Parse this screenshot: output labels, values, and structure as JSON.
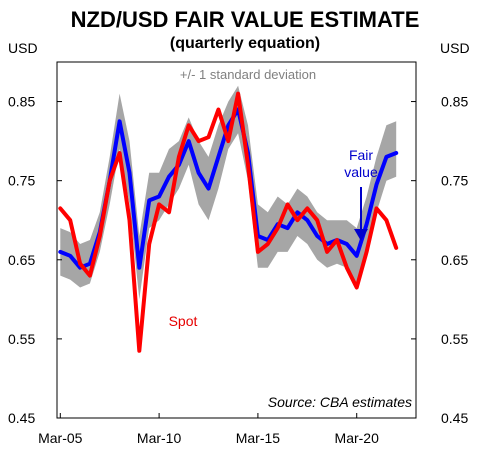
{
  "chart_data": {
    "type": "line",
    "title": "NZD/USD FAIR VALUE ESTIMATE",
    "subtitle": "(quarterly equation)",
    "ylabel_left": "USD",
    "ylabel_right": "USD",
    "ylim": [
      0.45,
      0.9
    ],
    "yticks": [
      0.45,
      0.55,
      0.65,
      0.75,
      0.85
    ],
    "ytick_labels": [
      "0.45",
      "0.55",
      "0.65",
      "0.75",
      "0.85"
    ],
    "xlim": [
      "2005-01",
      "2023-03"
    ],
    "xticks": [
      "2005-03",
      "2010-03",
      "2015-03",
      "2020-03"
    ],
    "xtick_labels": [
      "Mar-05",
      "Mar-10",
      "Mar-15",
      "Mar-20"
    ],
    "grid": false,
    "band": {
      "label": "+/- 1 standard deviation",
      "color": "#a6a6a6",
      "upper": [
        [
          "2005-03",
          0.69
        ],
        [
          "2005-09",
          0.685
        ],
        [
          "2006-03",
          0.67
        ],
        [
          "2006-09",
          0.675
        ],
        [
          "2007-03",
          0.71
        ],
        [
          "2007-09",
          0.78
        ],
        [
          "2008-03",
          0.86
        ],
        [
          "2008-09",
          0.8
        ],
        [
          "2009-03",
          0.68
        ],
        [
          "2009-09",
          0.76
        ],
        [
          "2010-03",
          0.76
        ],
        [
          "2010-09",
          0.79
        ],
        [
          "2011-03",
          0.8
        ],
        [
          "2011-09",
          0.83
        ],
        [
          "2012-03",
          0.8
        ],
        [
          "2012-09",
          0.78
        ],
        [
          "2013-03",
          0.82
        ],
        [
          "2013-09",
          0.85
        ],
        [
          "2014-03",
          0.87
        ],
        [
          "2014-09",
          0.82
        ],
        [
          "2015-03",
          0.72
        ],
        [
          "2015-09",
          0.71
        ],
        [
          "2016-03",
          0.73
        ],
        [
          "2016-09",
          0.72
        ],
        [
          "2017-03",
          0.74
        ],
        [
          "2017-09",
          0.73
        ],
        [
          "2018-03",
          0.71
        ],
        [
          "2018-09",
          0.7
        ],
        [
          "2019-03",
          0.7
        ],
        [
          "2019-09",
          0.7
        ],
        [
          "2020-03",
          0.69
        ],
        [
          "2020-09",
          0.73
        ],
        [
          "2021-03",
          0.78
        ],
        [
          "2021-09",
          0.82
        ],
        [
          "2022-03",
          0.825
        ]
      ],
      "lower": [
        [
          "2005-03",
          0.63
        ],
        [
          "2005-09",
          0.625
        ],
        [
          "2006-03",
          0.615
        ],
        [
          "2006-09",
          0.62
        ],
        [
          "2007-03",
          0.66
        ],
        [
          "2007-09",
          0.72
        ],
        [
          "2008-03",
          0.79
        ],
        [
          "2008-09",
          0.72
        ],
        [
          "2009-03",
          0.6
        ],
        [
          "2009-09",
          0.69
        ],
        [
          "2010-03",
          0.7
        ],
        [
          "2010-09",
          0.72
        ],
        [
          "2011-03",
          0.74
        ],
        [
          "2011-09",
          0.77
        ],
        [
          "2012-03",
          0.72
        ],
        [
          "2012-09",
          0.7
        ],
        [
          "2013-03",
          0.74
        ],
        [
          "2013-09",
          0.79
        ],
        [
          "2014-03",
          0.81
        ],
        [
          "2014-09",
          0.75
        ],
        [
          "2015-03",
          0.64
        ],
        [
          "2015-09",
          0.64
        ],
        [
          "2016-03",
          0.66
        ],
        [
          "2016-09",
          0.66
        ],
        [
          "2017-03",
          0.68
        ],
        [
          "2017-09",
          0.67
        ],
        [
          "2018-03",
          0.65
        ],
        [
          "2018-09",
          0.64
        ],
        [
          "2019-03",
          0.645
        ],
        [
          "2019-09",
          0.64
        ],
        [
          "2020-03",
          0.62
        ],
        [
          "2020-09",
          0.66
        ],
        [
          "2021-03",
          0.71
        ],
        [
          "2021-09",
          0.75
        ],
        [
          "2022-03",
          0.755
        ]
      ]
    },
    "series": [
      {
        "name": "Fair value",
        "color": "#0000ff",
        "points": [
          [
            "2005-03",
            0.66
          ],
          [
            "2005-09",
            0.655
          ],
          [
            "2006-03",
            0.64
          ],
          [
            "2006-09",
            0.645
          ],
          [
            "2007-03",
            0.685
          ],
          [
            "2007-09",
            0.75
          ],
          [
            "2008-03",
            0.825
          ],
          [
            "2008-09",
            0.76
          ],
          [
            "2009-03",
            0.64
          ],
          [
            "2009-09",
            0.725
          ],
          [
            "2010-03",
            0.73
          ],
          [
            "2010-09",
            0.755
          ],
          [
            "2011-03",
            0.77
          ],
          [
            "2011-09",
            0.8
          ],
          [
            "2012-03",
            0.76
          ],
          [
            "2012-09",
            0.74
          ],
          [
            "2013-03",
            0.78
          ],
          [
            "2013-09",
            0.82
          ],
          [
            "2014-03",
            0.84
          ],
          [
            "2014-09",
            0.785
          ],
          [
            "2015-03",
            0.68
          ],
          [
            "2015-09",
            0.675
          ],
          [
            "2016-03",
            0.695
          ],
          [
            "2016-09",
            0.69
          ],
          [
            "2017-03",
            0.71
          ],
          [
            "2017-09",
            0.7
          ],
          [
            "2018-03",
            0.68
          ],
          [
            "2018-09",
            0.67
          ],
          [
            "2019-03",
            0.675
          ],
          [
            "2019-09",
            0.67
          ],
          [
            "2020-03",
            0.655
          ],
          [
            "2020-09",
            0.695
          ],
          [
            "2021-03",
            0.745
          ],
          [
            "2021-09",
            0.78
          ],
          [
            "2022-03",
            0.785
          ]
        ]
      },
      {
        "name": "Spot",
        "color": "#ff0000",
        "points": [
          [
            "2005-03",
            0.715
          ],
          [
            "2005-09",
            0.7
          ],
          [
            "2006-03",
            0.645
          ],
          [
            "2006-09",
            0.63
          ],
          [
            "2007-03",
            0.68
          ],
          [
            "2007-09",
            0.75
          ],
          [
            "2008-03",
            0.785
          ],
          [
            "2008-09",
            0.7
          ],
          [
            "2009-03",
            0.535
          ],
          [
            "2009-09",
            0.67
          ],
          [
            "2010-03",
            0.72
          ],
          [
            "2010-09",
            0.71
          ],
          [
            "2011-03",
            0.78
          ],
          [
            "2011-09",
            0.82
          ],
          [
            "2012-03",
            0.8
          ],
          [
            "2012-09",
            0.805
          ],
          [
            "2013-03",
            0.84
          ],
          [
            "2013-09",
            0.8
          ],
          [
            "2014-03",
            0.86
          ],
          [
            "2014-09",
            0.77
          ],
          [
            "2015-03",
            0.66
          ],
          [
            "2015-09",
            0.67
          ],
          [
            "2016-03",
            0.69
          ],
          [
            "2016-09",
            0.72
          ],
          [
            "2017-03",
            0.7
          ],
          [
            "2017-09",
            0.715
          ],
          [
            "2018-03",
            0.7
          ],
          [
            "2018-09",
            0.66
          ],
          [
            "2019-03",
            0.675
          ],
          [
            "2019-09",
            0.64
          ],
          [
            "2020-03",
            0.615
          ],
          [
            "2020-09",
            0.66
          ],
          [
            "2021-03",
            0.715
          ],
          [
            "2021-09",
            0.7
          ],
          [
            "2022-03",
            0.665
          ]
        ]
      }
    ],
    "annotations": {
      "fair_value_line1": "Fair",
      "fair_value_line2": "value",
      "spot": "Spot",
      "source": "Source: CBA estimates"
    }
  }
}
